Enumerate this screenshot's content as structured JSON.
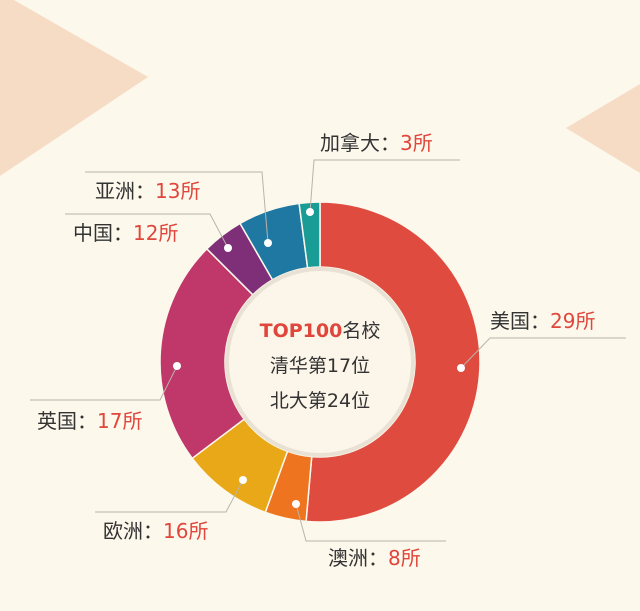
{
  "chart_data": {
    "type": "pie",
    "style": "donut",
    "unit": "所",
    "center_text": {
      "line1_highlight": "TOP100",
      "line1_rest": "名校",
      "line2": "清华第17位",
      "line3": "北大第24位"
    },
    "slices": [
      {
        "label": "美国",
        "value": 29,
        "value_text": "29所",
        "color": "#e04b3f"
      },
      {
        "label": "澳洲",
        "value": 8,
        "value_text": "8所",
        "color": "#ee7420"
      },
      {
        "label": "欧洲",
        "value": 16,
        "value_text": "16所",
        "color": "#e8a818"
      },
      {
        "label": "英国",
        "value": 17,
        "value_text": "17所",
        "color": "#c0386a"
      },
      {
        "label": "中国",
        "value": 12,
        "value_text": "12所",
        "color": "#7e2f78"
      },
      {
        "label": "亚洲",
        "value": 13,
        "value_text": "13所",
        "color": "#1f78a2"
      },
      {
        "label": "加拿大",
        "value": 3,
        "value_text": "3所",
        "color": "#1a9c96"
      }
    ],
    "separator": "：",
    "background_color": "#fdf8ec",
    "accent_color": "#e0463b"
  }
}
